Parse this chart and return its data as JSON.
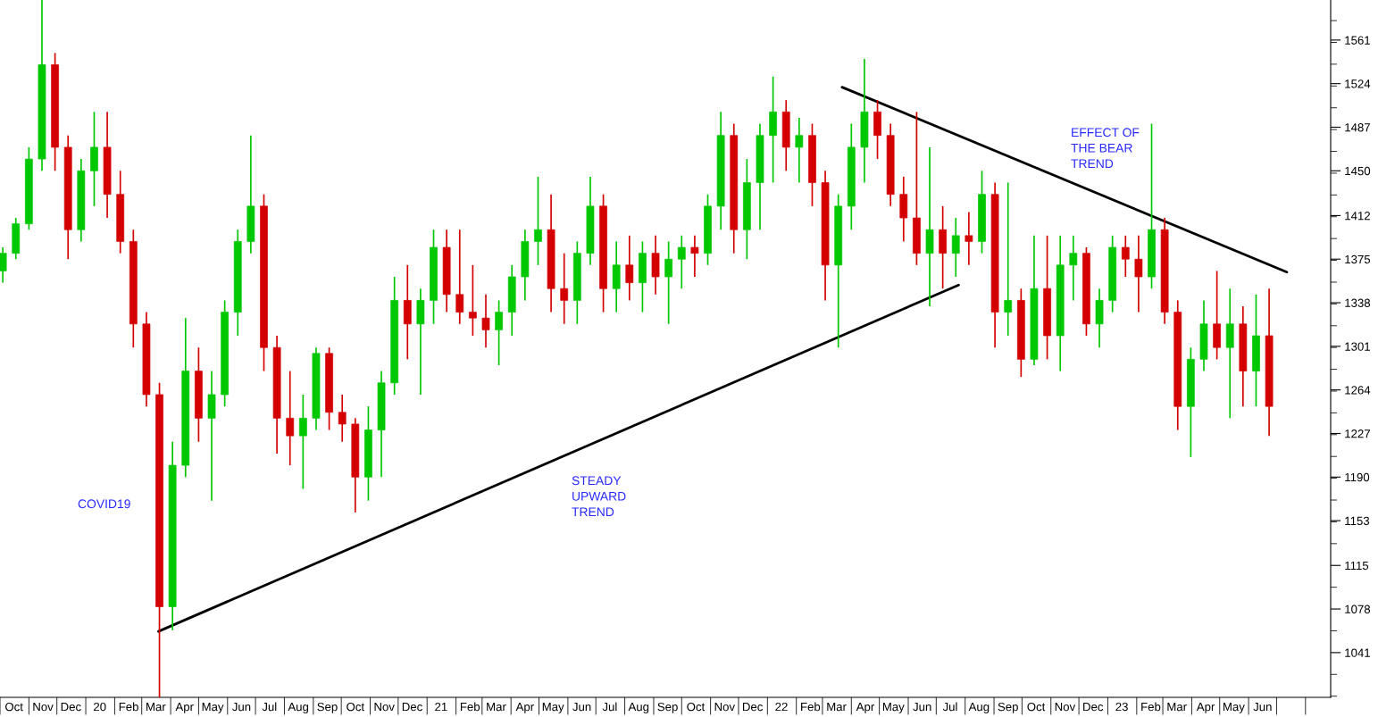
{
  "chart_data": {
    "type": "candlestick",
    "x": [
      "2019-10-04",
      "2019-10-18",
      "2019-11-01",
      "2019-11-15",
      "2019-11-29",
      "2019-12-13",
      "2019-12-27",
      "2020-01-10",
      "2020-01-24",
      "2020-02-07",
      "2020-02-21",
      "2020-03-06",
      "2020-03-20",
      "2020-04-03",
      "2020-04-17",
      "2020-05-01",
      "2020-05-15",
      "2020-05-29",
      "2020-06-12",
      "2020-06-26",
      "2020-07-10",
      "2020-07-24",
      "2020-08-07",
      "2020-08-21",
      "2020-09-04",
      "2020-09-18",
      "2020-10-02",
      "2020-10-16",
      "2020-10-30",
      "2020-11-13",
      "2020-11-27",
      "2020-12-11",
      "2020-12-25",
      "2021-01-08",
      "2021-01-22",
      "2021-02-05",
      "2021-02-19",
      "2021-03-05",
      "2021-03-19",
      "2021-04-02",
      "2021-04-16",
      "2021-04-30",
      "2021-05-14",
      "2021-05-28",
      "2021-06-11",
      "2021-06-25",
      "2021-07-09",
      "2021-07-23",
      "2021-08-06",
      "2021-08-20",
      "2021-09-03",
      "2021-09-17",
      "2021-10-01",
      "2021-10-15",
      "2021-10-29",
      "2021-11-12",
      "2021-11-26",
      "2021-12-10",
      "2021-12-24",
      "2022-01-07",
      "2022-01-21",
      "2022-02-04",
      "2022-02-18",
      "2022-03-04",
      "2022-03-18",
      "2022-04-01",
      "2022-04-15",
      "2022-04-29",
      "2022-05-13",
      "2022-05-27",
      "2022-06-10",
      "2022-06-24",
      "2022-07-08",
      "2022-07-22",
      "2022-08-05",
      "2022-08-19",
      "2022-09-02",
      "2022-09-16",
      "2022-09-30",
      "2022-10-14",
      "2022-10-28",
      "2022-11-11",
      "2022-11-25",
      "2022-12-09",
      "2022-12-23",
      "2023-01-06",
      "2023-01-20",
      "2023-02-03",
      "2023-02-17",
      "2023-03-03",
      "2023-03-17",
      "2023-03-31",
      "2023-04-14",
      "2023-04-28",
      "2023-05-12",
      "2023-05-26",
      "2023-06-09",
      "2023-06-23"
    ],
    "ohlc": [
      [
        1365,
        1385,
        1355,
        1380
      ],
      [
        1380,
        1410,
        1375,
        1405
      ],
      [
        1405,
        1470,
        1400,
        1460
      ],
      [
        1460,
        1595,
        1450,
        1540
      ],
      [
        1540,
        1550,
        1450,
        1470
      ],
      [
        1470,
        1480,
        1375,
        1400
      ],
      [
        1400,
        1460,
        1390,
        1450
      ],
      [
        1450,
        1500,
        1420,
        1470
      ],
      [
        1470,
        1500,
        1410,
        1430
      ],
      [
        1430,
        1450,
        1380,
        1390
      ],
      [
        1390,
        1400,
        1300,
        1320
      ],
      [
        1320,
        1330,
        1250,
        1260
      ],
      [
        1260,
        1270,
        1003,
        1080
      ],
      [
        1080,
        1220,
        1060,
        1200
      ],
      [
        1200,
        1325,
        1190,
        1280
      ],
      [
        1280,
        1300,
        1220,
        1240
      ],
      [
        1240,
        1280,
        1170,
        1260
      ],
      [
        1260,
        1340,
        1250,
        1330
      ],
      [
        1330,
        1400,
        1310,
        1390
      ],
      [
        1390,
        1480,
        1380,
        1420
      ],
      [
        1420,
        1430,
        1280,
        1300
      ],
      [
        1300,
        1310,
        1210,
        1240
      ],
      [
        1240,
        1280,
        1200,
        1225
      ],
      [
        1225,
        1260,
        1180,
        1240
      ],
      [
        1240,
        1300,
        1230,
        1295
      ],
      [
        1295,
        1300,
        1230,
        1245
      ],
      [
        1245,
        1260,
        1220,
        1235
      ],
      [
        1235,
        1240,
        1160,
        1190
      ],
      [
        1190,
        1250,
        1170,
        1230
      ],
      [
        1230,
        1280,
        1190,
        1270
      ],
      [
        1270,
        1360,
        1260,
        1340
      ],
      [
        1340,
        1370,
        1290,
        1320
      ],
      [
        1320,
        1350,
        1260,
        1340
      ],
      [
        1340,
        1400,
        1320,
        1385
      ],
      [
        1385,
        1400,
        1330,
        1345
      ],
      [
        1345,
        1400,
        1320,
        1330
      ],
      [
        1330,
        1370,
        1310,
        1325
      ],
      [
        1325,
        1345,
        1300,
        1315
      ],
      [
        1315,
        1340,
        1285,
        1330
      ],
      [
        1330,
        1370,
        1310,
        1360
      ],
      [
        1360,
        1400,
        1340,
        1390
      ],
      [
        1390,
        1445,
        1370,
        1400
      ],
      [
        1400,
        1430,
        1330,
        1350
      ],
      [
        1350,
        1380,
        1320,
        1340
      ],
      [
        1340,
        1390,
        1320,
        1380
      ],
      [
        1380,
        1445,
        1370,
        1420
      ],
      [
        1420,
        1430,
        1330,
        1350
      ],
      [
        1350,
        1390,
        1330,
        1370
      ],
      [
        1370,
        1395,
        1340,
        1355
      ],
      [
        1355,
        1390,
        1330,
        1380
      ],
      [
        1380,
        1395,
        1345,
        1360
      ],
      [
        1360,
        1390,
        1320,
        1375
      ],
      [
        1375,
        1395,
        1350,
        1385
      ],
      [
        1385,
        1395,
        1360,
        1380
      ],
      [
        1380,
        1430,
        1370,
        1420
      ],
      [
        1420,
        1500,
        1400,
        1480
      ],
      [
        1480,
        1490,
        1380,
        1400
      ],
      [
        1400,
        1460,
        1375,
        1440
      ],
      [
        1440,
        1490,
        1400,
        1480
      ],
      [
        1480,
        1530,
        1440,
        1500
      ],
      [
        1500,
        1510,
        1450,
        1470
      ],
      [
        1470,
        1495,
        1440,
        1480
      ],
      [
        1480,
        1490,
        1420,
        1440
      ],
      [
        1440,
        1450,
        1340,
        1370
      ],
      [
        1370,
        1430,
        1300,
        1420
      ],
      [
        1420,
        1490,
        1400,
        1470
      ],
      [
        1470,
        1545,
        1440,
        1500
      ],
      [
        1500,
        1510,
        1460,
        1480
      ],
      [
        1480,
        1490,
        1420,
        1430
      ],
      [
        1430,
        1445,
        1390,
        1410
      ],
      [
        1410,
        1500,
        1370,
        1380
      ],
      [
        1380,
        1470,
        1335,
        1400
      ],
      [
        1400,
        1420,
        1350,
        1380
      ],
      [
        1380,
        1410,
        1360,
        1395
      ],
      [
        1395,
        1415,
        1370,
        1390
      ],
      [
        1390,
        1450,
        1380,
        1430
      ],
      [
        1430,
        1440,
        1300,
        1330
      ],
      [
        1330,
        1440,
        1310,
        1340
      ],
      [
        1340,
        1350,
        1275,
        1290
      ],
      [
        1290,
        1395,
        1285,
        1350
      ],
      [
        1350,
        1395,
        1290,
        1310
      ],
      [
        1310,
        1395,
        1280,
        1370
      ],
      [
        1370,
        1395,
        1340,
        1380
      ],
      [
        1380,
        1385,
        1310,
        1320
      ],
      [
        1320,
        1350,
        1300,
        1340
      ],
      [
        1340,
        1395,
        1330,
        1385
      ],
      [
        1385,
        1395,
        1360,
        1375
      ],
      [
        1375,
        1395,
        1330,
        1360
      ],
      [
        1360,
        1490,
        1350,
        1400
      ],
      [
        1400,
        1410,
        1320,
        1330
      ],
      [
        1330,
        1340,
        1230,
        1250
      ],
      [
        1250,
        1300,
        1207,
        1290
      ],
      [
        1290,
        1340,
        1280,
        1320
      ],
      [
        1320,
        1365,
        1290,
        1300
      ],
      [
        1300,
        1350,
        1240,
        1320
      ],
      [
        1320,
        1335,
        1250,
        1280
      ],
      [
        1280,
        1345,
        1250,
        1310
      ],
      [
        1310,
        1350,
        1225,
        1250
      ]
    ],
    "colors": [
      "#00c800",
      "#00c800",
      "#00c800",
      "#00c800",
      "#d40000",
      "#d40000",
      "#00c800",
      "#00c800",
      "#d40000",
      "#d40000",
      "#d40000",
      "#d40000",
      "#d40000",
      "#00c800",
      "#00c800",
      "#d40000",
      "#00c800",
      "#00c800",
      "#00c800",
      "#00c800",
      "#d40000",
      "#d40000",
      "#d40000",
      "#00c800",
      "#00c800",
      "#d40000",
      "#d40000",
      "#d40000",
      "#00c800",
      "#00c800",
      "#00c800",
      "#d40000",
      "#00c800",
      "#00c800",
      "#d40000",
      "#d40000",
      "#d40000",
      "#d40000",
      "#00c800",
      "#00c800",
      "#00c800",
      "#00c800",
      "#d40000",
      "#d40000",
      "#00c800",
      "#00c800",
      "#d40000",
      "#00c800",
      "#d40000",
      "#00c800",
      "#d40000",
      "#00c800",
      "#00c800",
      "#d40000",
      "#00c800",
      "#00c800",
      "#d40000",
      "#00c800",
      "#00c800",
      "#00c800",
      "#d40000",
      "#00c800",
      "#d40000",
      "#d40000",
      "#00c800",
      "#00c800",
      "#00c800",
      "#d40000",
      "#d40000",
      "#d40000",
      "#d40000",
      "#00c800",
      "#d40000",
      "#00c800",
      "#d40000",
      "#00c800",
      "#d40000",
      "#00c800",
      "#d40000",
      "#00c800",
      "#d40000",
      "#00c800",
      "#00c800",
      "#d40000",
      "#00c800",
      "#00c800",
      "#d40000",
      "#d40000",
      "#00c800",
      "#d40000",
      "#d40000",
      "#00c800",
      "#00c800",
      "#d40000",
      "#00c800",
      "#d40000",
      "#00c800",
      "#d40000"
    ],
    "series": [
      {
        "type": "line",
        "color": "#000000",
        "x": [
          "2020-03-19",
          "2022-07-25"
        ],
        "values": [
          1059,
          1353
        ]
      },
      {
        "type": "line",
        "color": "#000000",
        "x": [
          "2022-03-22",
          "2023-07-12"
        ],
        "values": [
          1521,
          1364
        ]
      }
    ],
    "annotations": [
      "COVID19",
      "STEADY\nUPWARD\nTREND",
      "EFFECT OF\nTHE BEAR\nTREND"
    ],
    "xlim": [
      "2019-10-01",
      "2023-08-28"
    ],
    "xticks": [
      {
        "value": "2019-10-16",
        "label": "Oct"
      },
      {
        "value": "2019-11-16",
        "label": "Nov"
      },
      {
        "value": "2019-12-16",
        "label": "Dec"
      },
      {
        "value": "2020-01-16",
        "label": "20"
      },
      {
        "value": "2020-02-16",
        "label": "Feb"
      },
      {
        "value": "2020-03-16",
        "label": "Mar"
      },
      {
        "value": "2020-04-16",
        "label": "Apr"
      },
      {
        "value": "2020-05-16",
        "label": "May"
      },
      {
        "value": "2020-06-16",
        "label": "Jun"
      },
      {
        "value": "2020-07-16",
        "label": "Jul"
      },
      {
        "value": "2020-08-16",
        "label": "Aug"
      },
      {
        "value": "2020-09-16",
        "label": "Sep"
      },
      {
        "value": "2020-10-16",
        "label": "Oct"
      },
      {
        "value": "2020-11-16",
        "label": "Nov"
      },
      {
        "value": "2020-12-16",
        "label": "Dec"
      },
      {
        "value": "2021-01-16",
        "label": "21"
      },
      {
        "value": "2021-02-16",
        "label": "Feb"
      },
      {
        "value": "2021-03-16",
        "label": "Mar"
      },
      {
        "value": "2021-04-16",
        "label": "Apr"
      },
      {
        "value": "2021-05-16",
        "label": "May"
      },
      {
        "value": "2021-06-16",
        "label": "Jun"
      },
      {
        "value": "2021-07-16",
        "label": "Jul"
      },
      {
        "value": "2021-08-16",
        "label": "Aug"
      },
      {
        "value": "2021-09-16",
        "label": "Sep"
      },
      {
        "value": "2021-10-16",
        "label": "Oct"
      },
      {
        "value": "2021-11-16",
        "label": "Nov"
      },
      {
        "value": "2021-12-16",
        "label": "Dec"
      },
      {
        "value": "2022-01-16",
        "label": "22"
      },
      {
        "value": "2022-02-16",
        "label": "Feb"
      },
      {
        "value": "2022-03-16",
        "label": "Mar"
      },
      {
        "value": "2022-04-16",
        "label": "Apr"
      },
      {
        "value": "2022-05-16",
        "label": "May"
      },
      {
        "value": "2022-06-16",
        "label": "Jun"
      },
      {
        "value": "2022-07-16",
        "label": "Jul"
      },
      {
        "value": "2022-08-16",
        "label": "Aug"
      },
      {
        "value": "2022-09-16",
        "label": "Sep"
      },
      {
        "value": "2022-10-16",
        "label": "Oct"
      },
      {
        "value": "2022-11-16",
        "label": "Nov"
      },
      {
        "value": "2022-12-16",
        "label": "Dec"
      },
      {
        "value": "2023-01-16",
        "label": "23"
      },
      {
        "value": "2023-02-16",
        "label": "Feb"
      },
      {
        "value": "2023-03-16",
        "label": "Mar"
      },
      {
        "value": "2023-04-16",
        "label": "Apr"
      },
      {
        "value": "2023-05-16",
        "label": "May"
      },
      {
        "value": "2023-06-16",
        "label": "Jun"
      }
    ],
    "ylim": [
      1003,
      1595
    ],
    "yticks": [
      1041,
      1078,
      1115,
      1153,
      1190,
      1227,
      1264,
      1301,
      1338,
      1375,
      1412,
      1450,
      1487,
      1524,
      1561
    ],
    "grid": false
  }
}
